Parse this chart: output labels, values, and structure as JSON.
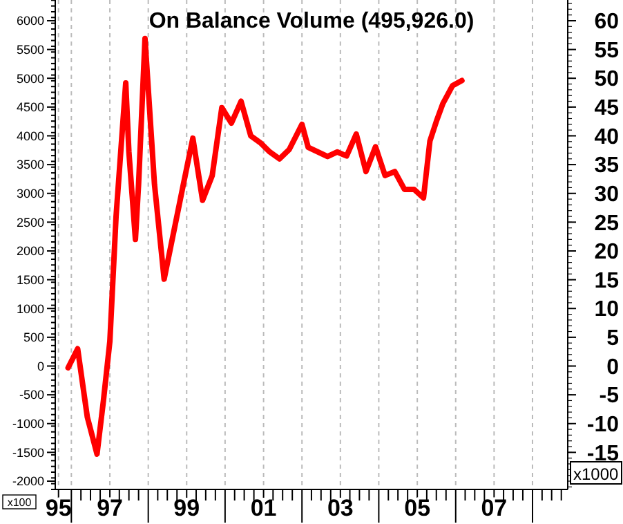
{
  "chart_data": {
    "type": "line",
    "title": "On Balance Volume (495,926.0)",
    "ylabel": "x100",
    "y2label": "x1000",
    "x": [
      "1995-12",
      "1996-03",
      "1996-06",
      "1996-09",
      "1996-11",
      "1997-01",
      "1997-03",
      "1997-06",
      "1997-07",
      "1997-09",
      "1997-10",
      "1997-12",
      "1998-03",
      "1998-06",
      "1998-12",
      "1999-03",
      "1999-06",
      "1999-09",
      "1999-12",
      "2000-03",
      "2000-06",
      "2000-09",
      "2000-12",
      "2001-03",
      "2001-06",
      "2001-09",
      "2002-01",
      "2002-03",
      "2002-09",
      "2002-12",
      "2003-03",
      "2003-06",
      "2003-09",
      "2003-12",
      "2004-03",
      "2004-06",
      "2004-09",
      "2004-12",
      "2005-03",
      "2005-05",
      "2005-07",
      "2005-09",
      "2005-12",
      "2006-03"
    ],
    "series": [
      {
        "color": "#ff0000",
        "values": [
          -30,
          300,
          -890,
          -1530,
          -600,
          430,
          2600,
          4920,
          3720,
          2200,
          3160,
          5690,
          3160,
          1510,
          3160,
          3960,
          2880,
          3310,
          4490,
          4220,
          4600,
          4000,
          3880,
          3720,
          3600,
          3760,
          4200,
          3800,
          3640,
          3720,
          3650,
          4030,
          3380,
          3810,
          3310,
          3380,
          3070,
          3070,
          2920,
          3910,
          4250,
          4560,
          4870,
          4960
        ]
      }
    ],
    "xlim": [
      "1995-08",
      "2008-12"
    ],
    "xticks": [
      {
        "value": "1995-09",
        "label": "95"
      },
      {
        "value": "1996",
        "label": null
      },
      {
        "value": "1997",
        "label": "97"
      },
      {
        "value": "1998",
        "label": null
      },
      {
        "value": "1999",
        "label": "99"
      },
      {
        "value": "2000",
        "label": null
      },
      {
        "value": "2001",
        "label": "01"
      },
      {
        "value": "2002",
        "label": null
      },
      {
        "value": "2003",
        "label": "03"
      },
      {
        "value": "2004",
        "label": null
      },
      {
        "value": "2005",
        "label": "05"
      },
      {
        "value": "2006",
        "label": null
      },
      {
        "value": "2007",
        "label": "07"
      },
      {
        "value": "2008",
        "label": null
      }
    ],
    "ylim": [
      -2144,
      6360
    ],
    "yticks": [
      -2000,
      -1500,
      -1000,
      -500,
      0,
      500,
      1000,
      1500,
      2000,
      2500,
      3000,
      3500,
      4000,
      4500,
      5000,
      5500,
      6000
    ],
    "y2lim": [
      -21.44,
      63.6
    ],
    "y2ticks": [
      -15,
      -10,
      -5,
      0,
      5,
      10,
      15,
      20,
      25,
      30,
      35,
      40,
      45,
      50,
      55,
      60
    ],
    "grid": "x",
    "marker": "none",
    "line_style": "solid"
  }
}
